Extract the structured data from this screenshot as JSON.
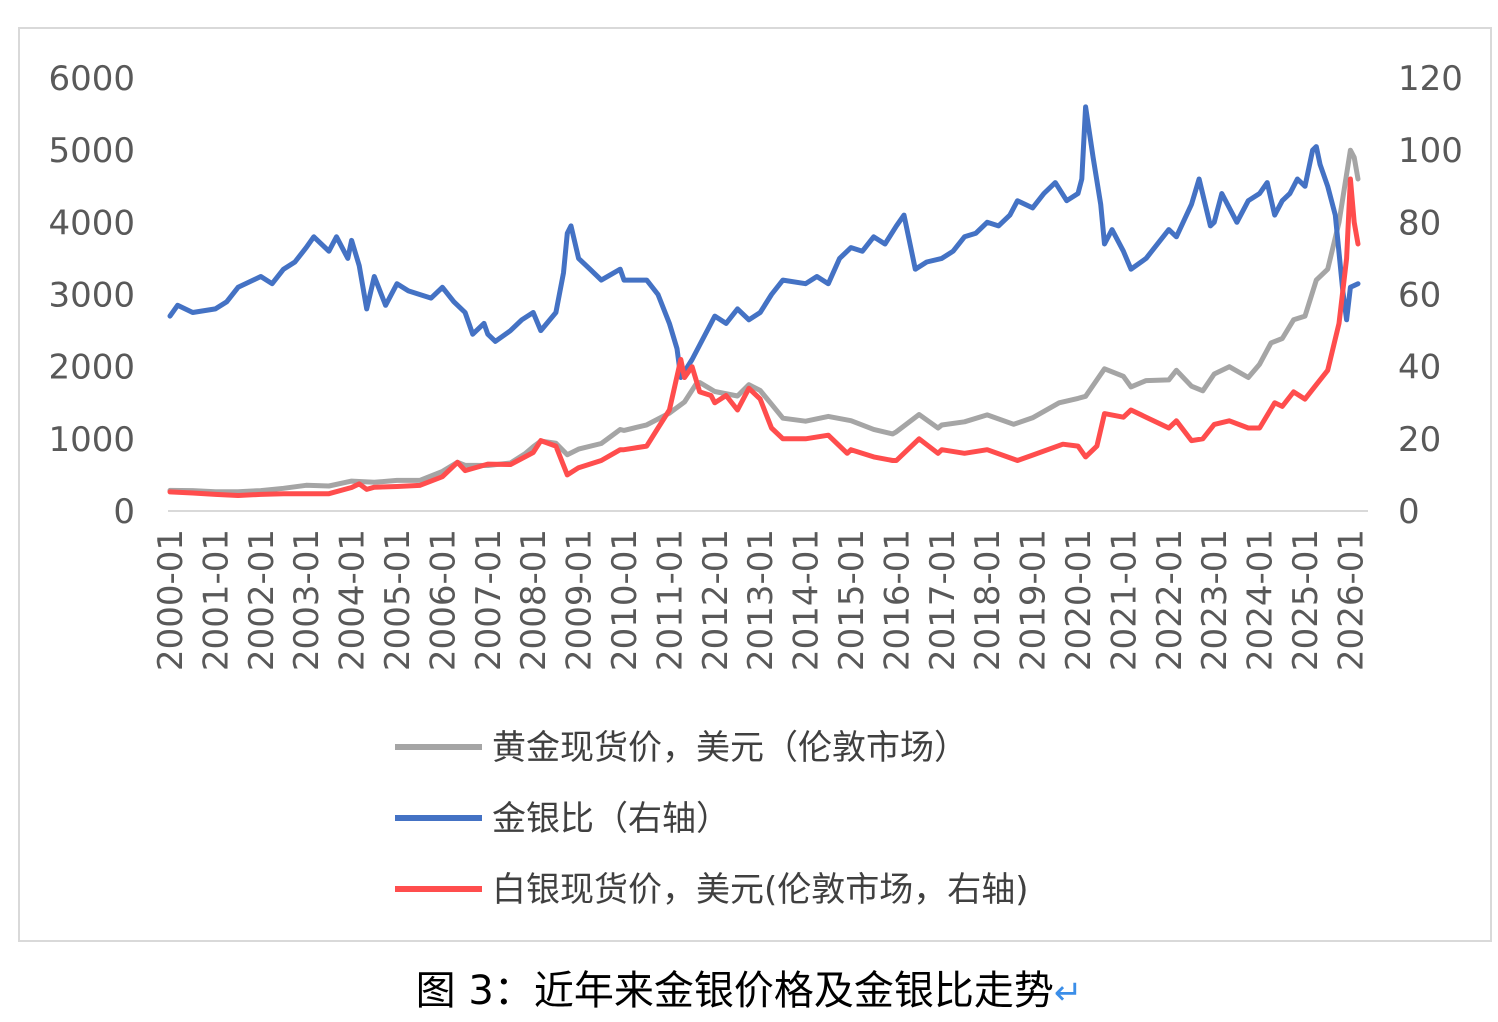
{
  "caption": "图 3：近年来金银价格及金银比走势",
  "caption_mark": "↵",
  "colors": {
    "gold": "#a5a5a5",
    "ratio": "#4472c4",
    "silver": "#ff4d4d",
    "axis_text": "#595959"
  },
  "chart_data": {
    "type": "line",
    "x_tick_labels": [
      "2000-01",
      "2001-01",
      "2002-01",
      "2003-01",
      "2004-01",
      "2005-01",
      "2006-01",
      "2007-01",
      "2008-01",
      "2009-01",
      "2010-01",
      "2011-01",
      "2012-01",
      "2013-01",
      "2014-01",
      "2015-01",
      "2016-01",
      "2017-01",
      "2018-01",
      "2019-01",
      "2020-01",
      "2021-01",
      "2022-01",
      "2023-01",
      "2024-01",
      "2025-01",
      "2026-01"
    ],
    "y_left": {
      "ticks": [
        "6000",
        "5000",
        "4000",
        "3000",
        "2000",
        "1000",
        "0"
      ],
      "range": [
        0,
        6000
      ]
    },
    "y_right": {
      "ticks": [
        "120",
        "100",
        "80",
        "60",
        "40",
        "20",
        "0"
      ],
      "range": [
        0,
        120
      ]
    },
    "legend_position": "bottom",
    "series": [
      {
        "name": "黄金现货价，美元（伦敦市场）",
        "axis": "left",
        "color": "#a5a5a5",
        "points": [
          [
            "2000-01",
            285
          ],
          [
            "2000-07",
            282
          ],
          [
            "2001-01",
            266
          ],
          [
            "2001-07",
            268
          ],
          [
            "2002-01",
            282
          ],
          [
            "2002-07",
            314
          ],
          [
            "2003-01",
            356
          ],
          [
            "2003-07",
            347
          ],
          [
            "2004-01",
            414
          ],
          [
            "2004-07",
            398
          ],
          [
            "2005-01",
            424
          ],
          [
            "2005-07",
            424
          ],
          [
            "2006-01",
            549
          ],
          [
            "2006-05",
            675
          ],
          [
            "2006-07",
            633
          ],
          [
            "2007-01",
            631
          ],
          [
            "2007-07",
            665
          ],
          [
            "2007-11",
            800
          ],
          [
            "2008-01",
            889
          ],
          [
            "2008-03",
            968
          ],
          [
            "2008-07",
            940
          ],
          [
            "2008-10",
            780
          ],
          [
            "2009-01",
            858
          ],
          [
            "2009-07",
            935
          ],
          [
            "2009-12",
            1130
          ],
          [
            "2010-01",
            1117
          ],
          [
            "2010-07",
            1193
          ],
          [
            "2011-01",
            1356
          ],
          [
            "2011-05",
            1510
          ],
          [
            "2011-08",
            1756
          ],
          [
            "2011-09",
            1780
          ],
          [
            "2012-01",
            1656
          ],
          [
            "2012-07",
            1594
          ],
          [
            "2012-10",
            1750
          ],
          [
            "2013-01",
            1670
          ],
          [
            "2013-04",
            1480
          ],
          [
            "2013-07",
            1286
          ],
          [
            "2014-01",
            1244
          ],
          [
            "2014-07",
            1311
          ],
          [
            "2015-01",
            1251
          ],
          [
            "2015-07",
            1131
          ],
          [
            "2015-12",
            1068
          ],
          [
            "2016-01",
            1097
          ],
          [
            "2016-07",
            1337
          ],
          [
            "2016-12",
            1150
          ],
          [
            "2017-01",
            1192
          ],
          [
            "2017-07",
            1236
          ],
          [
            "2018-01",
            1331
          ],
          [
            "2018-08",
            1201
          ],
          [
            "2019-01",
            1291
          ],
          [
            "2019-08",
            1500
          ],
          [
            "2020-01",
            1560
          ],
          [
            "2020-03",
            1590
          ],
          [
            "2020-08",
            1970
          ],
          [
            "2021-01",
            1866
          ],
          [
            "2021-03",
            1720
          ],
          [
            "2021-07",
            1807
          ],
          [
            "2022-01",
            1817
          ],
          [
            "2022-03",
            1950
          ],
          [
            "2022-07",
            1730
          ],
          [
            "2022-10",
            1665
          ],
          [
            "2023-01",
            1898
          ],
          [
            "2023-05",
            2000
          ],
          [
            "2023-10",
            1850
          ],
          [
            "2024-01",
            2034
          ],
          [
            "2024-04",
            2330
          ],
          [
            "2024-07",
            2390
          ],
          [
            "2024-10",
            2650
          ],
          [
            "2025-01",
            2700
          ],
          [
            "2025-04",
            3200
          ],
          [
            "2025-07",
            3350
          ],
          [
            "2025-10",
            4000
          ],
          [
            "2026-01",
            5000
          ],
          [
            "2026-02",
            4900
          ],
          [
            "2026-03",
            4600
          ]
        ]
      },
      {
        "name": "金银比（右轴）",
        "axis": "right",
        "color": "#4472c4",
        "points": [
          [
            "2000-01",
            54
          ],
          [
            "2000-03",
            57
          ],
          [
            "2000-07",
            55
          ],
          [
            "2001-01",
            56
          ],
          [
            "2001-04",
            58
          ],
          [
            "2001-07",
            62
          ],
          [
            "2002-01",
            65
          ],
          [
            "2002-04",
            63
          ],
          [
            "2002-07",
            67
          ],
          [
            "2002-10",
            69
          ],
          [
            "2003-01",
            73
          ],
          [
            "2003-03",
            76
          ],
          [
            "2003-07",
            72
          ],
          [
            "2003-09",
            76
          ],
          [
            "2003-12",
            70
          ],
          [
            "2004-01",
            75
          ],
          [
            "2004-03",
            68
          ],
          [
            "2004-05",
            56
          ],
          [
            "2004-07",
            65
          ],
          [
            "2004-10",
            57
          ],
          [
            "2005-01",
            63
          ],
          [
            "2005-04",
            61
          ],
          [
            "2005-07",
            60
          ],
          [
            "2005-10",
            59
          ],
          [
            "2006-01",
            62
          ],
          [
            "2006-04",
            58
          ],
          [
            "2006-07",
            55
          ],
          [
            "2006-09",
            49
          ],
          [
            "2006-12",
            52
          ],
          [
            "2007-01",
            49
          ],
          [
            "2007-03",
            47
          ],
          [
            "2007-07",
            50
          ],
          [
            "2007-10",
            53
          ],
          [
            "2008-01",
            55
          ],
          [
            "2008-03",
            50
          ],
          [
            "2008-07",
            55
          ],
          [
            "2008-09",
            66
          ],
          [
            "2008-10",
            77
          ],
          [
            "2008-11",
            79
          ],
          [
            "2009-01",
            70
          ],
          [
            "2009-04",
            67
          ],
          [
            "2009-07",
            64
          ],
          [
            "2009-12",
            67
          ],
          [
            "2010-01",
            64
          ],
          [
            "2010-07",
            64
          ],
          [
            "2010-10",
            60
          ],
          [
            "2011-01",
            52
          ],
          [
            "2011-03",
            45
          ],
          [
            "2011-04",
            37
          ],
          [
            "2011-07",
            42
          ],
          [
            "2011-12",
            52
          ],
          [
            "2012-01",
            54
          ],
          [
            "2012-04",
            52
          ],
          [
            "2012-07",
            56
          ],
          [
            "2012-10",
            53
          ],
          [
            "2013-01",
            55
          ],
          [
            "2013-04",
            60
          ],
          [
            "2013-07",
            64
          ],
          [
            "2014-01",
            63
          ],
          [
            "2014-04",
            65
          ],
          [
            "2014-07",
            63
          ],
          [
            "2014-10",
            70
          ],
          [
            "2015-01",
            73
          ],
          [
            "2015-04",
            72
          ],
          [
            "2015-07",
            76
          ],
          [
            "2015-10",
            74
          ],
          [
            "2016-01",
            79
          ],
          [
            "2016-03",
            82
          ],
          [
            "2016-06",
            67
          ],
          [
            "2016-09",
            69
          ],
          [
            "2017-01",
            70
          ],
          [
            "2017-04",
            72
          ],
          [
            "2017-07",
            76
          ],
          [
            "2017-10",
            77
          ],
          [
            "2018-01",
            80
          ],
          [
            "2018-04",
            79
          ],
          [
            "2018-07",
            82
          ],
          [
            "2018-09",
            86
          ],
          [
            "2019-01",
            84
          ],
          [
            "2019-04",
            88
          ],
          [
            "2019-07",
            91
          ],
          [
            "2019-10",
            86
          ],
          [
            "2020-01",
            88
          ],
          [
            "2020-02",
            92
          ],
          [
            "2020-03",
            112
          ],
          [
            "2020-05",
            98
          ],
          [
            "2020-07",
            85
          ],
          [
            "2020-08",
            74
          ],
          [
            "2020-10",
            78
          ],
          [
            "2021-01",
            72
          ],
          [
            "2021-03",
            67
          ],
          [
            "2021-07",
            70
          ],
          [
            "2022-01",
            78
          ],
          [
            "2022-03",
            76
          ],
          [
            "2022-07",
            85
          ],
          [
            "2022-09",
            92
          ],
          [
            "2022-12",
            79
          ],
          [
            "2023-01",
            80
          ],
          [
            "2023-03",
            88
          ],
          [
            "2023-07",
            80
          ],
          [
            "2023-10",
            86
          ],
          [
            "2024-01",
            88
          ],
          [
            "2024-03",
            91
          ],
          [
            "2024-05",
            82
          ],
          [
            "2024-07",
            86
          ],
          [
            "2024-09",
            88
          ],
          [
            "2024-11",
            92
          ],
          [
            "2025-01",
            90
          ],
          [
            "2025-03",
            100
          ],
          [
            "2025-04",
            101
          ],
          [
            "2025-05",
            96
          ],
          [
            "2025-07",
            90
          ],
          [
            "2025-09",
            82
          ],
          [
            "2025-11",
            61
          ],
          [
            "2025-12",
            53
          ],
          [
            "2026-01",
            62
          ],
          [
            "2026-03",
            63
          ]
        ]
      },
      {
        "name": "白银现货价，美元(伦敦市场，右轴)",
        "axis": "right",
        "color": "#ff4d4d",
        "points": [
          [
            "2000-01",
            5.3
          ],
          [
            "2000-07",
            5.0
          ],
          [
            "2001-01",
            4.6
          ],
          [
            "2001-07",
            4.3
          ],
          [
            "2002-01",
            4.6
          ],
          [
            "2002-07",
            4.8
          ],
          [
            "2003-01",
            4.8
          ],
          [
            "2003-07",
            4.8
          ],
          [
            "2004-01",
            6.5
          ],
          [
            "2004-03",
            7.5
          ],
          [
            "2004-05",
            6.0
          ],
          [
            "2004-07",
            6.6
          ],
          [
            "2005-01",
            6.8
          ],
          [
            "2005-07",
            7.1
          ],
          [
            "2006-01",
            9.5
          ],
          [
            "2006-05",
            13.5
          ],
          [
            "2006-07",
            11.2
          ],
          [
            "2007-01",
            13.0
          ],
          [
            "2007-07",
            12.9
          ],
          [
            "2008-01",
            16.2
          ],
          [
            "2008-03",
            19.5
          ],
          [
            "2008-07",
            18.0
          ],
          [
            "2008-10",
            10.0
          ],
          [
            "2009-01",
            12.0
          ],
          [
            "2009-07",
            14.0
          ],
          [
            "2009-12",
            17.0
          ],
          [
            "2010-01",
            17.0
          ],
          [
            "2010-07",
            18.0
          ],
          [
            "2010-10",
            23.0
          ],
          [
            "2011-01",
            28.0
          ],
          [
            "2011-04",
            42.0
          ],
          [
            "2011-05",
            37.0
          ],
          [
            "2011-07",
            40.0
          ],
          [
            "2011-09",
            33.0
          ],
          [
            "2011-12",
            32.0
          ],
          [
            "2012-01",
            30.0
          ],
          [
            "2012-04",
            32.0
          ],
          [
            "2012-07",
            28.0
          ],
          [
            "2012-10",
            34.0
          ],
          [
            "2013-01",
            31.0
          ],
          [
            "2013-04",
            23.0
          ],
          [
            "2013-07",
            20.0
          ],
          [
            "2014-01",
            20.0
          ],
          [
            "2014-07",
            21.0
          ],
          [
            "2014-12",
            16.0
          ],
          [
            "2015-01",
            17.0
          ],
          [
            "2015-07",
            15.0
          ],
          [
            "2015-12",
            14.0
          ],
          [
            "2016-01",
            14.0
          ],
          [
            "2016-07",
            20.0
          ],
          [
            "2016-12",
            16.0
          ],
          [
            "2017-01",
            17.0
          ],
          [
            "2017-07",
            16.0
          ],
          [
            "2018-01",
            17.0
          ],
          [
            "2018-09",
            14.0
          ],
          [
            "2019-01",
            15.5
          ],
          [
            "2019-09",
            18.5
          ],
          [
            "2020-01",
            18.0
          ],
          [
            "2020-03",
            15.0
          ],
          [
            "2020-06",
            18.0
          ],
          [
            "2020-08",
            27.0
          ],
          [
            "2021-01",
            26.0
          ],
          [
            "2021-03",
            28.0
          ],
          [
            "2021-07",
            26.0
          ],
          [
            "2022-01",
            23.0
          ],
          [
            "2022-03",
            25.0
          ],
          [
            "2022-07",
            19.5
          ],
          [
            "2022-10",
            20.0
          ],
          [
            "2023-01",
            24.0
          ],
          [
            "2023-05",
            25.0
          ],
          [
            "2023-10",
            23.0
          ],
          [
            "2024-01",
            23.0
          ],
          [
            "2024-05",
            30.0
          ],
          [
            "2024-07",
            29.0
          ],
          [
            "2024-10",
            33.0
          ],
          [
            "2025-01",
            31.0
          ],
          [
            "2025-04",
            35.0
          ],
          [
            "2025-07",
            39.0
          ],
          [
            "2025-10",
            52.0
          ],
          [
            "2025-12",
            70.0
          ],
          [
            "2026-01",
            92.0
          ],
          [
            "2026-02",
            80.0
          ],
          [
            "2026-03",
            74.0
          ]
        ]
      }
    ]
  }
}
